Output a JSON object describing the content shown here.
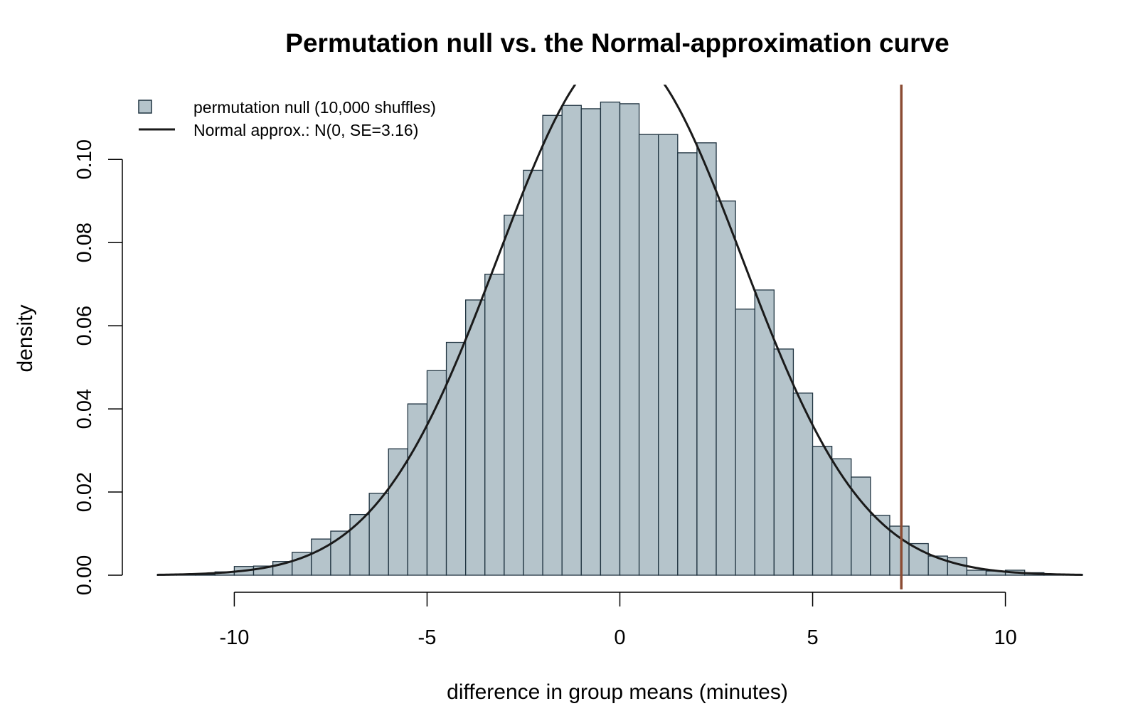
{
  "chart_data": {
    "type": "bar",
    "title": "Permutation null vs. the Normal-approximation curve",
    "xlabel": "difference in group means (minutes)",
    "ylabel": "density",
    "xlim": [
      -12,
      12
    ],
    "ylim": [
      0,
      0.118
    ],
    "x_ticks": [
      -10,
      -5,
      0,
      5,
      10
    ],
    "x_tick_labels": [
      "-10",
      "-5",
      "0",
      "5",
      "10"
    ],
    "y_ticks": [
      0,
      0.02,
      0.04,
      0.06,
      0.08,
      0.1
    ],
    "y_tick_labels": [
      "0.00",
      "0.02",
      "0.04",
      "0.06",
      "0.08",
      "0.10"
    ],
    "bin_width": 0.5,
    "bins": [
      {
        "x0": -12.0,
        "x1": -11.5,
        "density": 0.0001
      },
      {
        "x0": -11.5,
        "x1": -11.0,
        "density": 0.0001
      },
      {
        "x0": -11.0,
        "x1": -10.5,
        "density": 0.0002
      },
      {
        "x0": -10.5,
        "x1": -10.0,
        "density": 0.0008
      },
      {
        "x0": -10.0,
        "x1": -9.5,
        "density": 0.0021
      },
      {
        "x0": -9.5,
        "x1": -9.0,
        "density": 0.0022
      },
      {
        "x0": -9.0,
        "x1": -8.5,
        "density": 0.0033
      },
      {
        "x0": -8.5,
        "x1": -8.0,
        "density": 0.0055
      },
      {
        "x0": -8.0,
        "x1": -7.5,
        "density": 0.0087
      },
      {
        "x0": -7.5,
        "x1": -7.0,
        "density": 0.0106
      },
      {
        "x0": -7.0,
        "x1": -6.5,
        "density": 0.0146
      },
      {
        "x0": -6.5,
        "x1": -6.0,
        "density": 0.0197
      },
      {
        "x0": -6.0,
        "x1": -5.5,
        "density": 0.0304
      },
      {
        "x0": -5.5,
        "x1": -5.0,
        "density": 0.0412
      },
      {
        "x0": -5.0,
        "x1": -4.5,
        "density": 0.0492
      },
      {
        "x0": -4.5,
        "x1": -4.0,
        "density": 0.056
      },
      {
        "x0": -4.0,
        "x1": -3.5,
        "density": 0.0662
      },
      {
        "x0": -3.5,
        "x1": -3.0,
        "density": 0.0724
      },
      {
        "x0": -3.0,
        "x1": -2.5,
        "density": 0.0866
      },
      {
        "x0": -2.5,
        "x1": -2.0,
        "density": 0.0974
      },
      {
        "x0": -2.0,
        "x1": -1.5,
        "density": 0.1106
      },
      {
        "x0": -1.5,
        "x1": -1.0,
        "density": 0.113
      },
      {
        "x0": -1.0,
        "x1": -0.5,
        "density": 0.1122
      },
      {
        "x0": -0.5,
        "x1": 0.0,
        "density": 0.1138
      },
      {
        "x0": 0.0,
        "x1": 0.5,
        "density": 0.1134
      },
      {
        "x0": 0.5,
        "x1": 1.0,
        "density": 0.106
      },
      {
        "x0": 1.0,
        "x1": 1.5,
        "density": 0.106
      },
      {
        "x0": 1.5,
        "x1": 2.0,
        "density": 0.1016
      },
      {
        "x0": 2.0,
        "x1": 2.5,
        "density": 0.104
      },
      {
        "x0": 2.5,
        "x1": 3.0,
        "density": 0.09
      },
      {
        "x0": 3.0,
        "x1": 3.5,
        "density": 0.064
      },
      {
        "x0": 3.5,
        "x1": 4.0,
        "density": 0.0686
      },
      {
        "x0": 4.0,
        "x1": 4.5,
        "density": 0.0544
      },
      {
        "x0": 4.5,
        "x1": 5.0,
        "density": 0.0438
      },
      {
        "x0": 5.0,
        "x1": 5.5,
        "density": 0.031
      },
      {
        "x0": 5.5,
        "x1": 6.0,
        "density": 0.028
      },
      {
        "x0": 6.0,
        "x1": 6.5,
        "density": 0.0236
      },
      {
        "x0": 6.5,
        "x1": 7.0,
        "density": 0.0144
      },
      {
        "x0": 7.0,
        "x1": 7.5,
        "density": 0.0118
      },
      {
        "x0": 7.5,
        "x1": 8.0,
        "density": 0.0076
      },
      {
        "x0": 8.0,
        "x1": 8.5,
        "density": 0.0046
      },
      {
        "x0": 8.5,
        "x1": 9.0,
        "density": 0.0042
      },
      {
        "x0": 9.0,
        "x1": 9.5,
        "density": 0.0012
      },
      {
        "x0": 9.5,
        "x1": 10.0,
        "density": 0.001
      },
      {
        "x0": 10.0,
        "x1": 10.5,
        "density": 0.0012
      },
      {
        "x0": 10.5,
        "x1": 11.0,
        "density": 0.0006
      },
      {
        "x0": 11.0,
        "x1": 11.5,
        "density": 0.0002
      },
      {
        "x0": 11.5,
        "x1": 12.0,
        "density": 0.0002
      }
    ],
    "series": [
      {
        "name": "permutation null (10,000 shuffles)",
        "kind": "histogram",
        "fill": "#b5c4cb",
        "stroke": "#1f3340"
      },
      {
        "name": "Normal approx.: N(0, SE=3.16)",
        "kind": "curve",
        "mean": 0,
        "sd": 3.16,
        "color": "#1a1a1a"
      }
    ],
    "observed_line": {
      "x": 7.3,
      "color": "#8b4c33"
    },
    "legend": {
      "position": "top-left"
    },
    "grid": false
  }
}
